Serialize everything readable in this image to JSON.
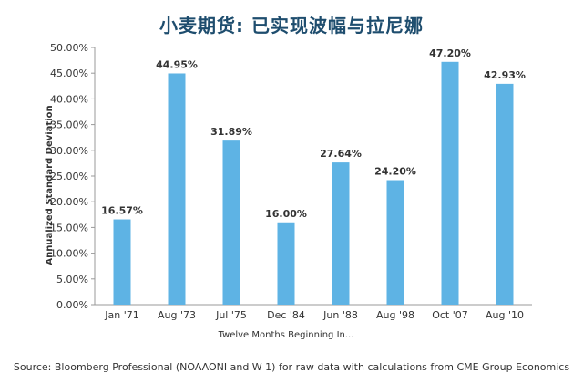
{
  "header": {
    "title": "小麦期货: 已实现波幅与拉尼娜"
  },
  "footer": {
    "source": "Source: Bloomberg Professional (NOAAONI and W 1) for raw data with calculations from CME Group Economics"
  },
  "colors": {
    "bar": "#5eb3e4",
    "axis": "#999999",
    "grid": "#e0e0e0"
  },
  "chart_data": {
    "type": "bar",
    "categories": [
      "Jan '71",
      "Aug '73",
      "Jul '75",
      "Dec '84",
      "Jun '88",
      "Aug '98",
      "Oct '07",
      "Aug '10"
    ],
    "values": [
      16.57,
      44.95,
      31.89,
      16.0,
      27.64,
      24.2,
      47.2,
      42.93
    ],
    "data_labels": [
      "16.57%",
      "44.95%",
      "31.89%",
      "16.00%",
      "27.64%",
      "24.20%",
      "47.20%",
      "42.93%"
    ],
    "xlabel": "Twelve Months Beginning In...",
    "ylabel": "Annualized Standard Deviation",
    "ylim": [
      0,
      50
    ],
    "yticks": [
      "0.00%",
      "5.00%",
      "10.00%",
      "15.00%",
      "20.00%",
      "25.00%",
      "30.00%",
      "35.00%",
      "40.00%",
      "45.00%",
      "50.00%"
    ],
    "grid": false,
    "legend": "none"
  }
}
